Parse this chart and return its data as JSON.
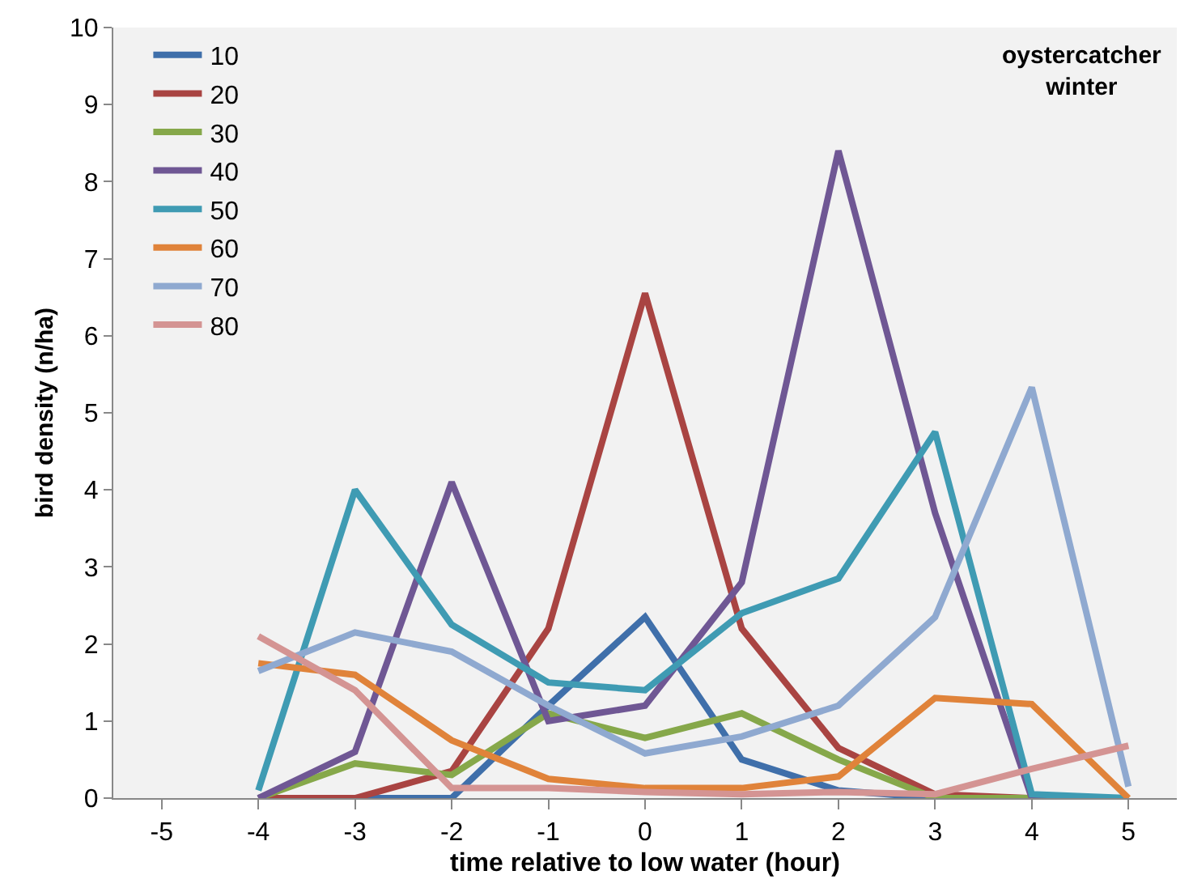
{
  "chart_data": {
    "type": "line",
    "xlabel": "time relative to low water (hour)",
    "ylabel": "bird density (n/ha)",
    "annotations": [
      "oystercatcher\nwinter"
    ],
    "x": [
      -4,
      -3,
      -2,
      -1,
      0,
      1,
      2,
      3,
      4,
      5
    ],
    "xlim": [
      -5.5,
      5.5
    ],
    "xticks": [
      -5,
      -4,
      -3,
      -2,
      -1,
      0,
      1,
      2,
      3,
      4,
      5
    ],
    "ylim": [
      0,
      10
    ],
    "yticks": [
      0,
      1,
      2,
      3,
      4,
      5,
      6,
      7,
      8,
      9,
      10
    ],
    "grid": false,
    "legend": "top left",
    "marker": "none",
    "line_style": "solid",
    "series": [
      {
        "name": "10",
        "color": "#3f6faa",
        "values": [
          0,
          0,
          0,
          1.2,
          2.35,
          0.5,
          0.1,
          0,
          0,
          0
        ]
      },
      {
        "name": "20",
        "color": "#a94442",
        "values": [
          0,
          0,
          0.35,
          2.2,
          6.55,
          2.2,
          0.65,
          0.05,
          0,
          0
        ]
      },
      {
        "name": "30",
        "color": "#86a84a",
        "values": [
          0,
          0.45,
          0.3,
          1.1,
          0.78,
          1.1,
          0.5,
          0,
          0,
          0
        ]
      },
      {
        "name": "40",
        "color": "#6f5794",
        "values": [
          0,
          0.6,
          4.1,
          1.0,
          1.2,
          2.8,
          8.4,
          3.7,
          0,
          0
        ]
      },
      {
        "name": "50",
        "color": "#3f9bb3",
        "values": [
          0.1,
          4.0,
          2.25,
          1.5,
          1.4,
          2.4,
          2.85,
          4.75,
          0.05,
          0
        ]
      },
      {
        "name": "60",
        "color": "#e0833a",
        "values": [
          1.75,
          1.6,
          0.75,
          0.25,
          0.13,
          0.13,
          0.28,
          1.3,
          1.22,
          0
        ]
      },
      {
        "name": "70",
        "color": "#8fa9d0",
        "values": [
          1.65,
          2.15,
          1.9,
          1.2,
          0.58,
          0.8,
          1.2,
          2.35,
          5.33,
          0.15
        ]
      },
      {
        "name": "80",
        "color": "#d49493",
        "values": [
          2.1,
          1.4,
          0.13,
          0.13,
          0.08,
          0.05,
          0.08,
          0.05,
          0.38,
          0.68
        ]
      }
    ]
  }
}
